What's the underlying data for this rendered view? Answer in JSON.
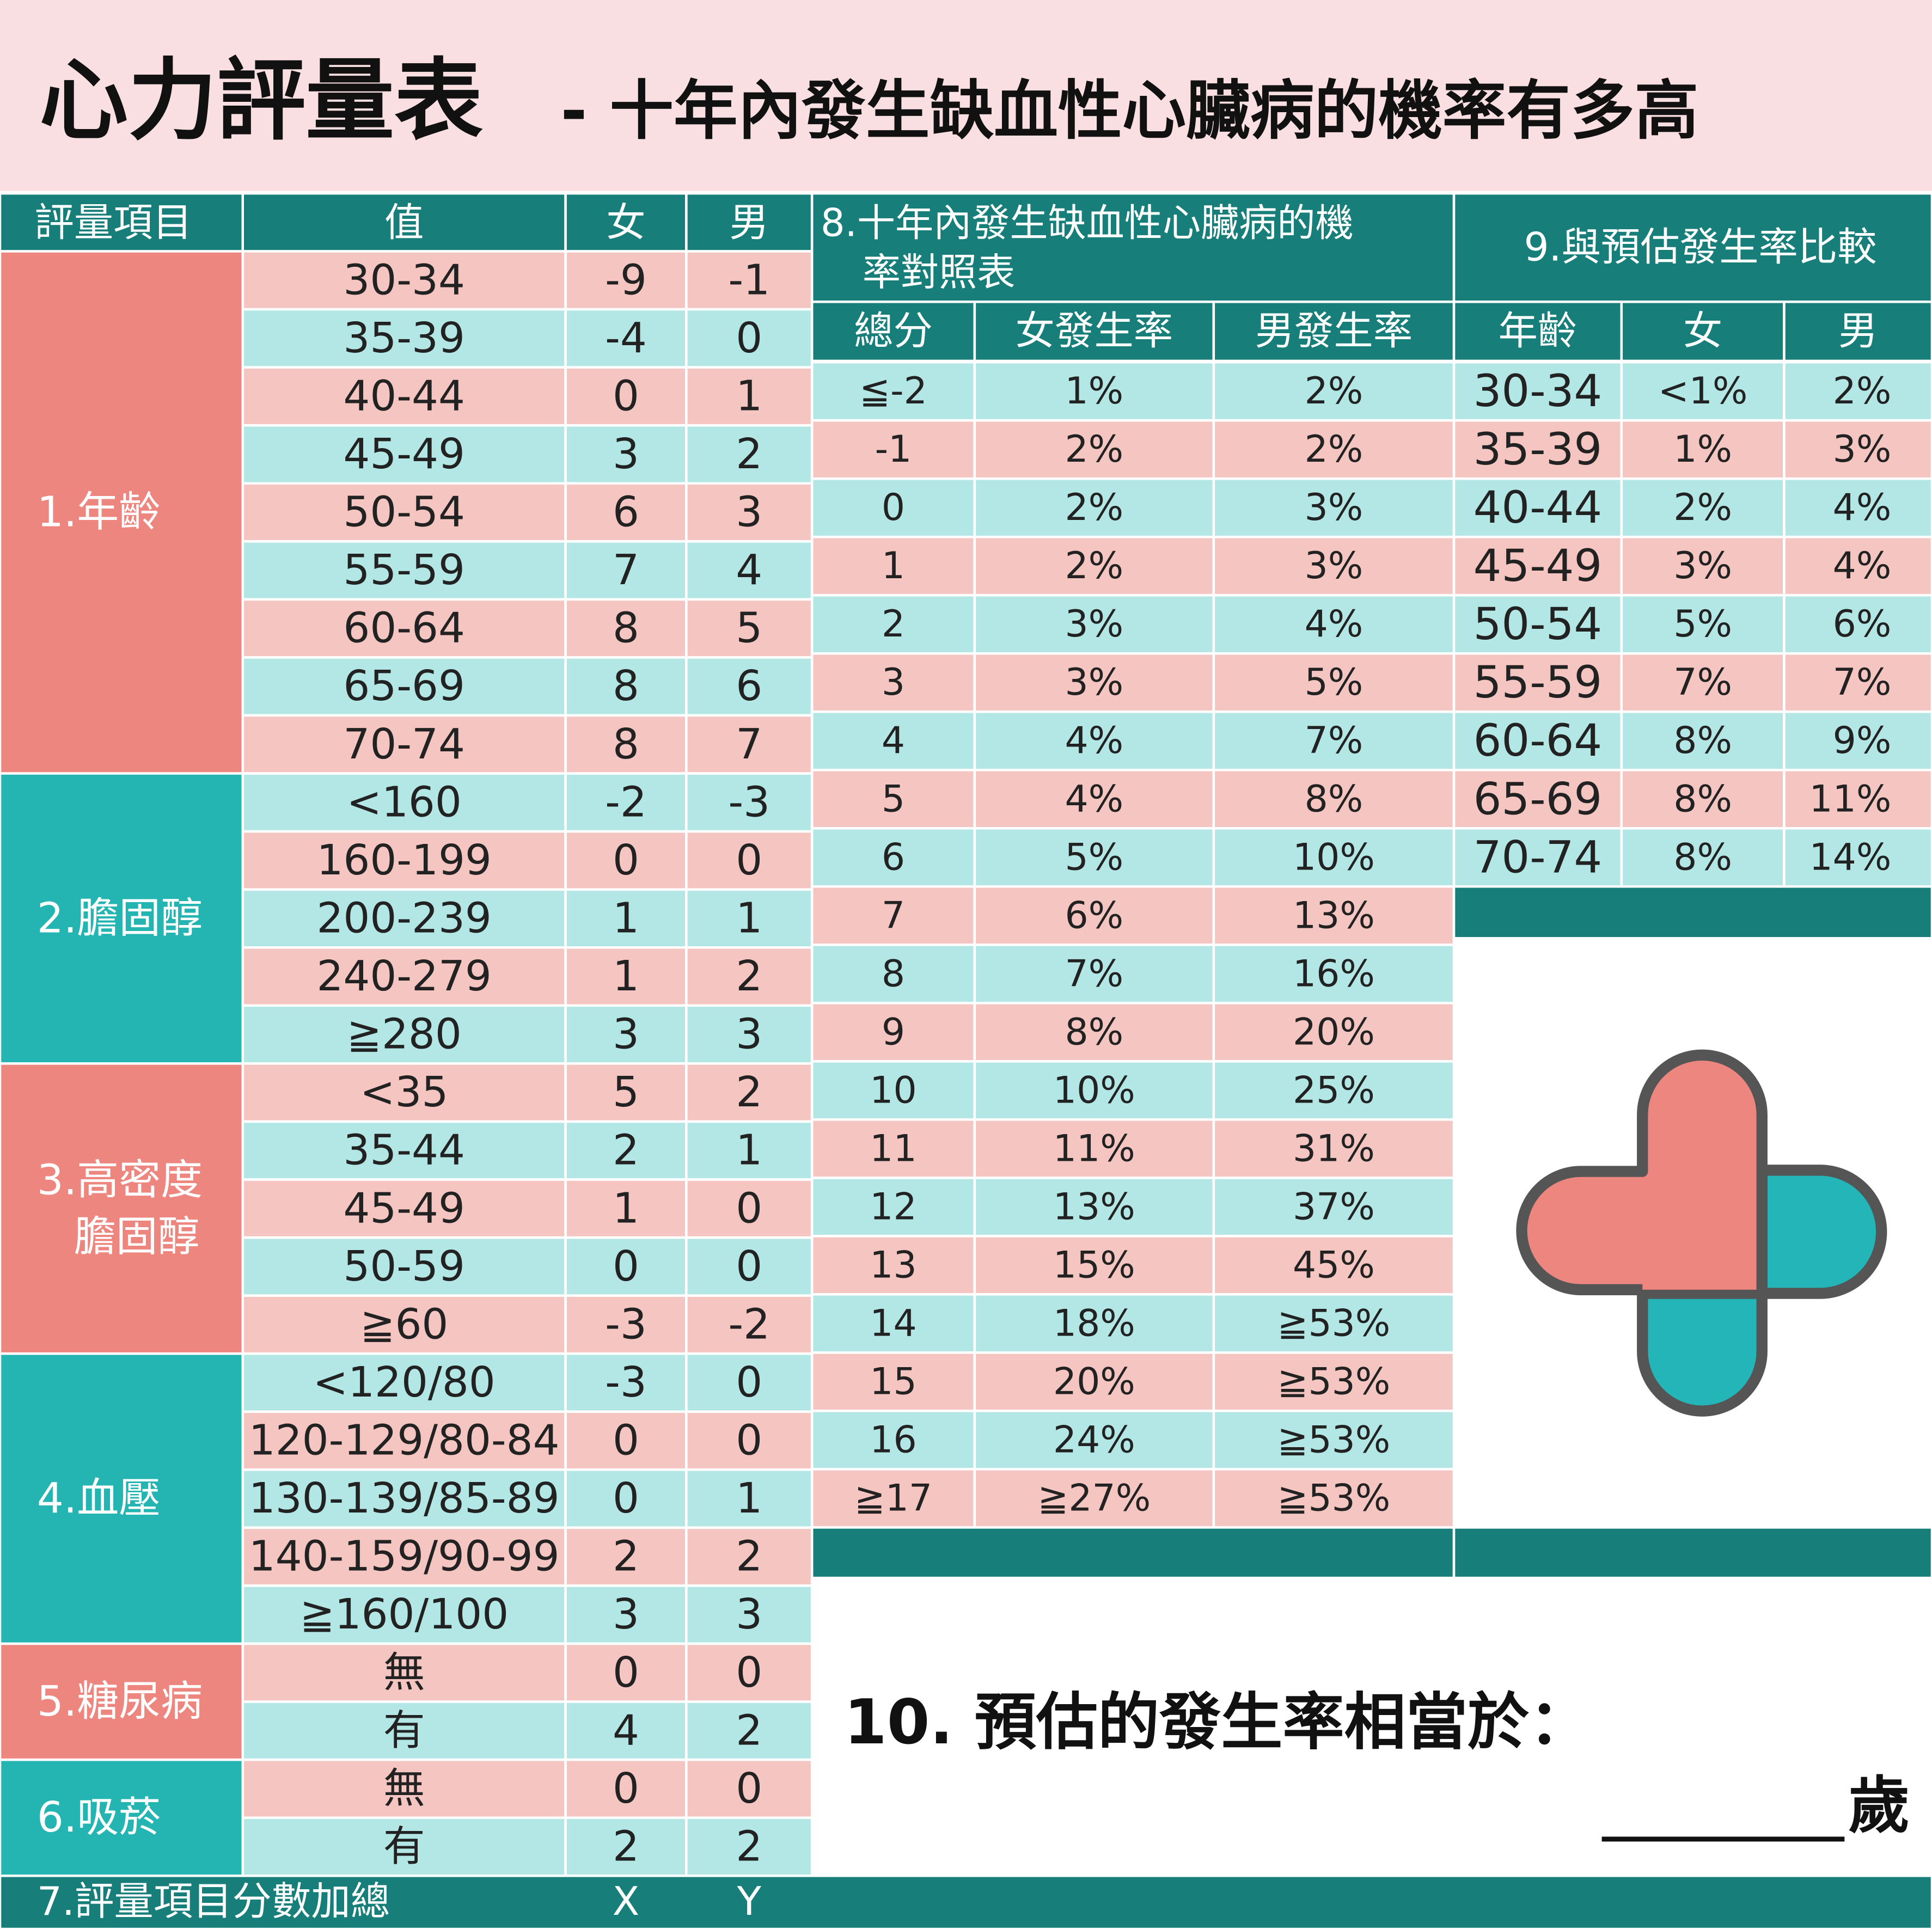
{
  "header": {
    "title": "心力評量表",
    "subtitle": "- 十年內發生缺血性心臟病的機率有多高"
  },
  "score_table": {
    "columns": [
      "評量項目",
      "值",
      "女",
      "男"
    ],
    "groups": [
      {
        "label": [
          "1.年齡"
        ],
        "rows": [
          [
            "30-34",
            "-9",
            "-1"
          ],
          [
            "35-39",
            "-4",
            "0"
          ],
          [
            "40-44",
            "0",
            "1"
          ],
          [
            "45-49",
            "3",
            "2"
          ],
          [
            "50-54",
            "6",
            "3"
          ],
          [
            "55-59",
            "7",
            "4"
          ],
          [
            "60-64",
            "8",
            "5"
          ],
          [
            "65-69",
            "8",
            "6"
          ],
          [
            "70-74",
            "8",
            "7"
          ]
        ]
      },
      {
        "label": [
          "2.膽固醇"
        ],
        "rows": [
          [
            "<160",
            "-2",
            "-3"
          ],
          [
            "160-199",
            "0",
            "0"
          ],
          [
            "200-239",
            "1",
            "1"
          ],
          [
            "240-279",
            "1",
            "2"
          ],
          [
            "≧280",
            "3",
            "3"
          ]
        ]
      },
      {
        "label": [
          "3.高密度",
          "膽固醇"
        ],
        "rows": [
          [
            "<35",
            "5",
            "2"
          ],
          [
            "35-44",
            "2",
            "1"
          ],
          [
            "45-49",
            "1",
            "0"
          ],
          [
            "50-59",
            "0",
            "0"
          ],
          [
            "≧60",
            "-3",
            "-2"
          ]
        ]
      },
      {
        "label": [
          "4.血壓"
        ],
        "rows": [
          [
            "<120/80",
            "-3",
            "0"
          ],
          [
            "120-129/80-84",
            "0",
            "0"
          ],
          [
            "130-139/85-89",
            "0",
            "1"
          ],
          [
            "140-159/90-99",
            "2",
            "2"
          ],
          [
            "≧160/100",
            "3",
            "3"
          ]
        ]
      },
      {
        "label": [
          "5.糖尿病"
        ],
        "rows": [
          [
            "無",
            "0",
            "0"
          ],
          [
            "有",
            "4",
            "2"
          ]
        ]
      },
      {
        "label": [
          "6.吸菸"
        ],
        "rows": [
          [
            "無",
            "0",
            "0"
          ],
          [
            "有",
            "2",
            "2"
          ]
        ]
      }
    ],
    "total": [
      "7.評量項目分數加總",
      "X",
      "Y"
    ]
  },
  "risk_table": {
    "title": [
      "8.十年內發生缺血性心臟病的機",
      "率對照表"
    ],
    "columns": [
      "總分",
      "女發生率",
      "男發生率"
    ],
    "rows": [
      [
        "≦-2",
        "1%",
        "2%"
      ],
      [
        "-1",
        "2%",
        "2%"
      ],
      [
        "0",
        "2%",
        "3%"
      ],
      [
        "1",
        "2%",
        "3%"
      ],
      [
        "2",
        "3%",
        "4%"
      ],
      [
        "3",
        "3%",
        "5%"
      ],
      [
        "4",
        "4%",
        "7%"
      ],
      [
        "5",
        "4%",
        "8%"
      ],
      [
        "6",
        "5%",
        "10%"
      ],
      [
        "7",
        "6%",
        "13%"
      ],
      [
        "8",
        "7%",
        "16%"
      ],
      [
        "9",
        "8%",
        "20%"
      ],
      [
        "10",
        "10%",
        "25%"
      ],
      [
        "11",
        "11%",
        "31%"
      ],
      [
        "12",
        "13%",
        "37%"
      ],
      [
        "13",
        "15%",
        "45%"
      ],
      [
        "14",
        "18%",
        "≧53%"
      ],
      [
        "15",
        "20%",
        "≧53%"
      ],
      [
        "16",
        "24%",
        "≧53%"
      ],
      [
        "≧17",
        "≧27%",
        "≧53%"
      ]
    ]
  },
  "compare_table": {
    "title": "9.與預估發生率比較",
    "columns": [
      "年齡",
      "女",
      "男"
    ],
    "rows": [
      [
        "30-34",
        "<1%",
        "2%"
      ],
      [
        "35-39",
        "1%",
        "3%"
      ],
      [
        "40-44",
        "2%",
        "4%"
      ],
      [
        "45-49",
        "3%",
        "4%"
      ],
      [
        "50-54",
        "5%",
        "6%"
      ],
      [
        "55-59",
        "7%",
        "7%"
      ],
      [
        "60-64",
        "8%",
        "9%"
      ],
      [
        "65-69",
        "8%",
        "11%"
      ],
      [
        "70-74",
        "8%",
        "14%"
      ]
    ]
  },
  "question": {
    "text": "10. 預估的發生率相當於：",
    "unit": "歲"
  }
}
